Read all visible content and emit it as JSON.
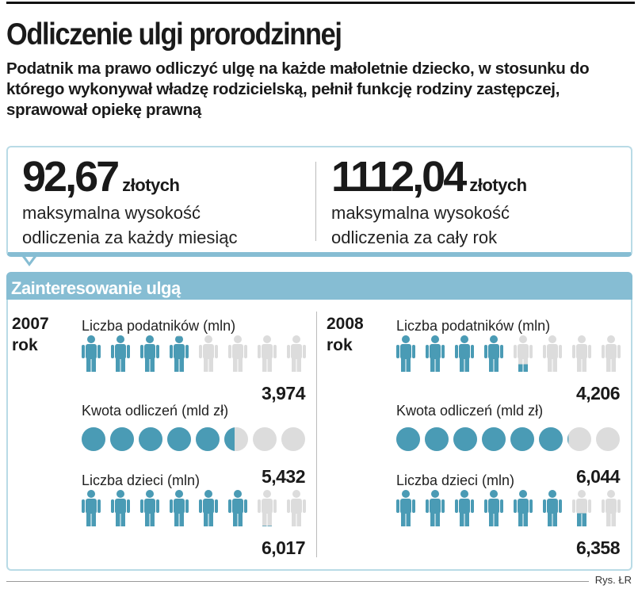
{
  "title": "Odliczenie ulgi prorodzinnej",
  "subtitle": "Podatnik ma prawo odliczyć ulgę na każde małoletnie dziecko, w stosunku do którego wykonywał władzę rodzicielską, pełnił funkcję rodziny zastępczej, sprawował opiekę prawną",
  "stats": [
    {
      "value": "92,67",
      "unit": "złotych",
      "desc1": "maksymalna wysokość",
      "desc2": "odliczenia za każdy miesiąc"
    },
    {
      "value": "1112,04",
      "unit": "złotych",
      "desc1": "maksymalna wysokość",
      "desc2": "odliczenia za cały rok"
    }
  ],
  "section_title": "Zainteresowanie ulgą",
  "colors": {
    "accent": "#4a9bb5",
    "empty": "#dcdcdc",
    "header": "#86bdd3"
  },
  "years": [
    {
      "year": "2007",
      "rok": "rok",
      "metrics": [
        {
          "label": "Liczba podatników (mln)",
          "value": "3,974",
          "amount": 3.974,
          "icon": "person-icon"
        },
        {
          "label": "Kwota odliczeń (mld zł)",
          "value": "5,432",
          "amount": 5.432,
          "icon": "coin-icon"
        },
        {
          "label": "Liczba dzieci (mln)",
          "value": "6,017",
          "amount": 6.017,
          "icon": "person-icon"
        }
      ]
    },
    {
      "year": "2008",
      "rok": "rok",
      "metrics": [
        {
          "label": "Liczba podatników (mln)",
          "value": "4,206",
          "amount": 4.206,
          "icon": "person-icon"
        },
        {
          "label": "Kwota odliczeń (mld zł)",
          "value": "6,044",
          "amount": 6.044,
          "icon": "coin-icon"
        },
        {
          "label": "Liczba dzieci (mln)",
          "value": "6,358",
          "amount": 6.358,
          "icon": "person-icon"
        }
      ]
    }
  ],
  "credit": "Rys. ŁR"
}
